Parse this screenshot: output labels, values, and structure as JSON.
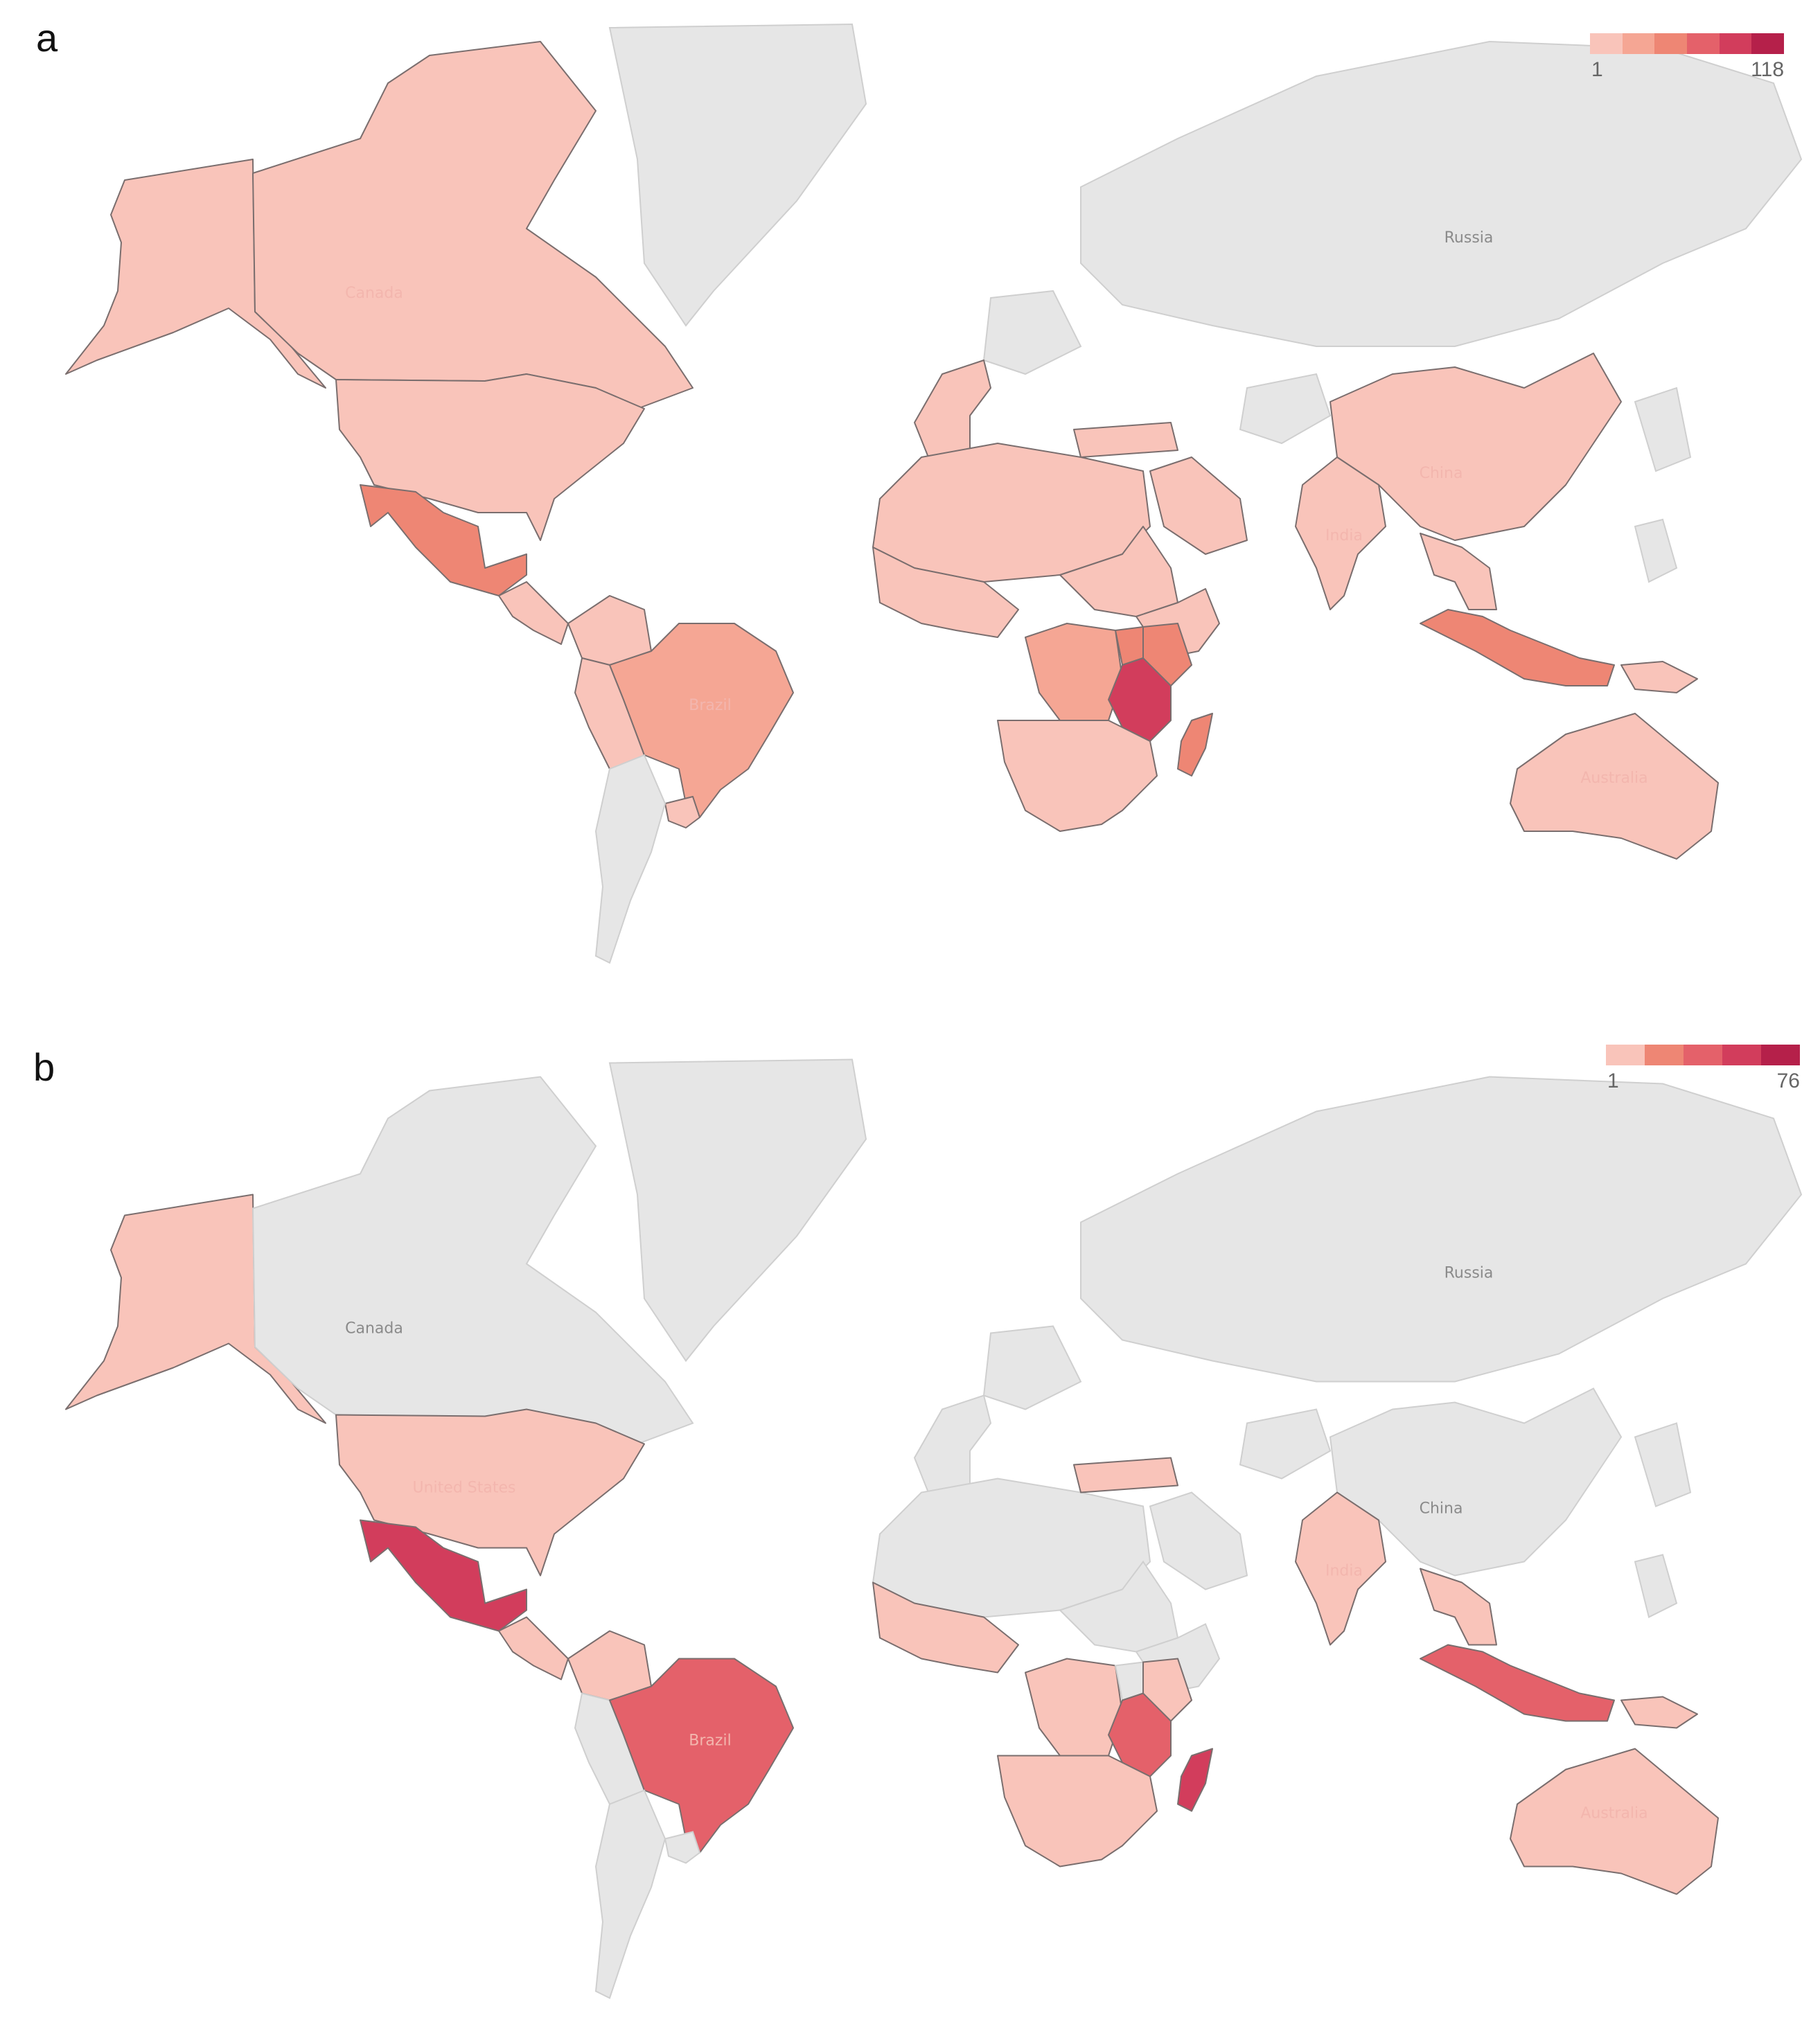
{
  "panels": [
    {
      "letter": "a",
      "legend": {
        "min": "1",
        "max": "118",
        "colors": [
          "#f9c4ba",
          "#f5a694",
          "#ee8674",
          "#e4616a",
          "#d23d5c",
          "#b5204a"
        ]
      },
      "labels": {
        "russia": "Russia",
        "canada": "Canada",
        "china": "China",
        "india": "India",
        "brazil": "Brazil",
        "australia": "Australia"
      },
      "countries": {
        "alaska": 1,
        "canada": 1,
        "greenland": null,
        "usa": 1,
        "mexico": 3,
        "central_america": 1,
        "colombia": 1,
        "peru": 1,
        "brazil": 2,
        "uruguay": 1,
        "south_america_rest": null,
        "west_europe": 1,
        "north_africa": 1,
        "west_africa": 1,
        "sudan_region": 1,
        "ethiopia": 1,
        "drc": 2,
        "kenya": 3,
        "uganda": 3,
        "tanzania": 5,
        "southern_africa": 1,
        "madagascar": 3,
        "turkey": 1,
        "middle_east": 1,
        "china": 1,
        "india": 1,
        "southeast_asia": 1,
        "indonesia": 3,
        "papua": 1,
        "australia": 1,
        "russia": null
      }
    },
    {
      "letter": "b",
      "legend": {
        "min": "1",
        "max": "76",
        "colors": [
          "#f9c4ba",
          "#ee8674",
          "#e4616a",
          "#d23d5c",
          "#b5204a"
        ]
      },
      "labels": {
        "russia": "Russia",
        "canada": "Canada",
        "united_states": "United States",
        "china": "China",
        "india": "India",
        "brazil": "Brazil",
        "australia": "Australia"
      },
      "countries": {
        "alaska": 1,
        "canada": null,
        "greenland": null,
        "usa": 1,
        "mexico": 4,
        "central_america": 1,
        "colombia": 1,
        "peru": null,
        "brazil": 3,
        "uruguay": null,
        "south_america_rest": null,
        "west_europe": null,
        "north_africa": null,
        "west_africa": 1,
        "sudan_region": null,
        "ethiopia": null,
        "drc": 1,
        "kenya": 1,
        "uganda": null,
        "tanzania": 3,
        "southern_africa": 1,
        "madagascar": 4,
        "turkey": 1,
        "middle_east": null,
        "china": null,
        "india": 1,
        "southeast_asia": 1,
        "indonesia": 3,
        "papua": 1,
        "australia": 1,
        "russia": null
      }
    }
  ]
}
